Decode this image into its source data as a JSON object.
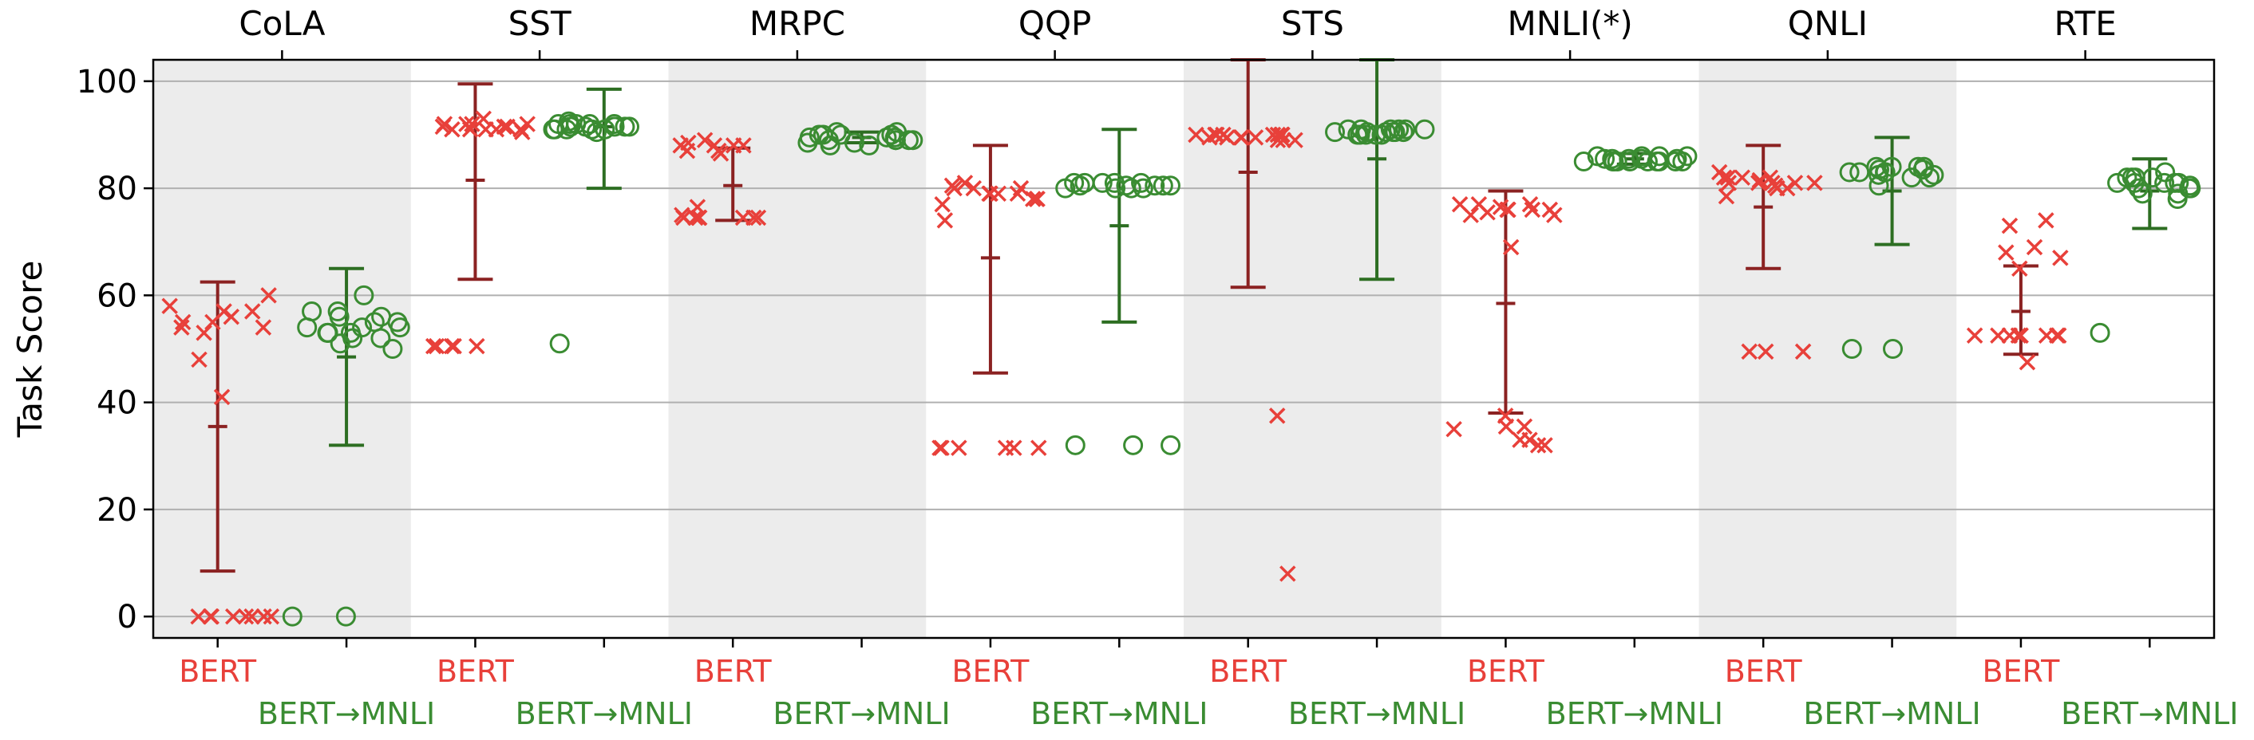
{
  "chart_data": {
    "type": "scatter",
    "ylabel": "Task Score",
    "ylim": [
      -4,
      104
    ],
    "yticks": [
      0,
      20,
      40,
      60,
      80,
      100
    ],
    "grid": "horizontal",
    "tasks": [
      "CoLA",
      "SST",
      "MRPC",
      "QQP",
      "STS",
      "MNLI(*)",
      "QNLI",
      "RTE"
    ],
    "categories": [
      "BERT",
      "BERT→MNLI"
    ],
    "colors": {
      "BERT": "#e8403a",
      "BERT→MNLI": "#3a8c32",
      "BERT_errorbar": "#8b2222",
      "BERT→MNLI_errorbar": "#2d6e22",
      "shade": "#ececec"
    },
    "series": [
      {
        "task": "CoLA",
        "bert": {
          "points": [
            54,
            58,
            57,
            53,
            55,
            56,
            54,
            48,
            41,
            60,
            57,
            55,
            0,
            0,
            0,
            0,
            0,
            0,
            0,
            0
          ],
          "mean": 35.5,
          "err_low": 8.5,
          "err_high": 62.5
        },
        "mnli": {
          "points": [
            53,
            53,
            55,
            56,
            57,
            54,
            52,
            51,
            50,
            56,
            54,
            53,
            55,
            52,
            60,
            57,
            54,
            53,
            0,
            0
          ],
          "mean": 48.5,
          "err_low": 32,
          "err_high": 65
        }
      },
      {
        "task": "SST",
        "bert": {
          "points": [
            91,
            92,
            91.5,
            93,
            92,
            91,
            92,
            91.5,
            91,
            90.5,
            91,
            92,
            91,
            91.5,
            50.5,
            50.5,
            50.5,
            50.5,
            50.5
          ],
          "mean": 81.5,
          "err_low": 63,
          "err_high": 99.5
        },
        "mnli": {
          "points": [
            92,
            91.5,
            92,
            91,
            91.5,
            92,
            91,
            92.5,
            91,
            91.5,
            92,
            91,
            91.5,
            92,
            91,
            91.5,
            90.5,
            51
          ],
          "mean": 91.5,
          "err_low": 80,
          "err_high": 98.5
        }
      },
      {
        "task": "MRPC",
        "bert": {
          "points": [
            88,
            88.5,
            87,
            88,
            89,
            86.5,
            88,
            87,
            88,
            76.5,
            75,
            74.5,
            74.5,
            74.5,
            74.5,
            74.5,
            74.5,
            74.5
          ],
          "mean": 80.5,
          "err_low": 74,
          "err_high": 87.5
        },
        "mnli": {
          "points": [
            89,
            90,
            88.5,
            89.5,
            90,
            88,
            89,
            90.5,
            88.5,
            89,
            90,
            89.5,
            88,
            89,
            90,
            89.5,
            90.5,
            89
          ],
          "mean": 89.5,
          "err_low": 88.5,
          "err_high": 90.5
        }
      },
      {
        "task": "QQP",
        "bert": {
          "points": [
            80,
            79,
            78,
            80.5,
            77,
            79,
            81,
            78,
            74,
            80,
            79,
            78,
            80,
            79,
            31.5,
            31.5,
            31.5,
            31.5,
            31.5,
            31.5
          ],
          "mean": 67,
          "err_low": 45.5,
          "err_high": 88
        },
        "mnli": {
          "points": [
            81,
            80.5,
            80,
            81,
            80.5,
            80,
            81,
            80.5,
            80,
            81,
            80.5,
            80,
            81,
            80.5,
            32,
            32,
            32
          ],
          "mean": 73,
          "err_low": 55,
          "err_high": 91
        }
      },
      {
        "task": "STS",
        "bert": {
          "points": [
            90,
            89.5,
            90,
            89,
            90,
            89.5,
            90,
            89,
            90,
            89.5,
            90,
            89.5,
            90,
            89,
            90,
            89.5,
            90,
            37.5,
            8
          ],
          "mean": 83,
          "err_low": 61.5,
          "err_high": 104
        },
        "mnli": {
          "points": [
            91,
            90.5,
            91,
            90,
            90.5,
            91,
            90,
            90.5,
            91,
            90,
            90.5,
            91,
            90,
            90.5,
            91,
            90,
            90.5
          ],
          "mean": 85.5,
          "err_low": 63,
          "err_high": 104
        }
      },
      {
        "task": "MNLI(*)",
        "bert": {
          "points": [
            75,
            76,
            77,
            75.5,
            76,
            69,
            77,
            76,
            75,
            76.5,
            77,
            76,
            35.5,
            35.5,
            35,
            33,
            32,
            32,
            37.5,
            33
          ],
          "mean": 58.5,
          "err_low": 38,
          "err_high": 79.5
        },
        "mnli": {
          "points": [
            85,
            85.5,
            85,
            86,
            85,
            85.5,
            85,
            86,
            85,
            85.5,
            85,
            86,
            85,
            85.5,
            85,
            86,
            85,
            85.5,
            85
          ],
          "mean": 85.5,
          "err_low": 84.5,
          "err_high": 86.5
        }
      },
      {
        "task": "QNLI",
        "bert": {
          "points": [
            80,
            81,
            82,
            80.5,
            81,
            82,
            83,
            81,
            80,
            82,
            81,
            78.5,
            81.5,
            81,
            82,
            49.5,
            49.5,
            49.5
          ],
          "mean": 76.5,
          "err_low": 65,
          "err_high": 88
        },
        "mnli": {
          "points": [
            82,
            83,
            83.5,
            82.5,
            84,
            83,
            82.5,
            84,
            83,
            80.5,
            83.5,
            82,
            84,
            83,
            84,
            50,
            50
          ],
          "mean": 79.5,
          "err_low": 69.5,
          "err_high": 89.5
        }
      },
      {
        "task": "RTE",
        "bert": {
          "points": [
            67,
            68,
            69,
            65,
            52.5,
            52.5,
            52.5,
            52.5,
            52.5,
            52.5,
            52.5,
            52.5,
            52.5,
            47.5,
            74,
            73
          ],
          "mean": 57,
          "err_low": 49,
          "err_high": 65.5
        },
        "mnli": {
          "points": [
            81,
            80,
            79,
            82,
            81,
            78,
            80.5,
            82,
            81,
            80,
            79,
            82,
            83,
            81,
            80,
            82,
            81,
            53
          ],
          "mean": 79.5,
          "err_low": 72.5,
          "err_high": 85.5
        }
      }
    ]
  }
}
